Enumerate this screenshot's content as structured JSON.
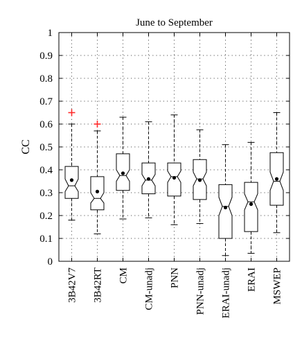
{
  "chart_data": {
    "type": "box",
    "title": "June to September",
    "xlabel": "",
    "ylabel": "CC",
    "ylim": [
      0,
      1
    ],
    "yticks": [
      0,
      0.1,
      0.2,
      0.3,
      0.4,
      0.5,
      0.6,
      0.7,
      0.8,
      0.9,
      1
    ],
    "ytick_labels": [
      "0",
      "0.1",
      "0.2",
      "0.3",
      "0.4",
      "0.5",
      "0.6",
      "0.7",
      "0.8",
      "0.9",
      "1"
    ],
    "grid": true,
    "notched": true,
    "categories": [
      "3B42V7",
      "3B42RT",
      "CM",
      "CM-unadj",
      "PNN",
      "PNN-unadj",
      "ERAI-unadj",
      "ERAI",
      "MSWEP"
    ],
    "boxes": [
      {
        "whisker_low": 0.18,
        "q1": 0.275,
        "median": 0.33,
        "q3": 0.415,
        "whisker_high": 0.6,
        "notch_low": 0.305,
        "notch_high": 0.36,
        "mean": 0.355,
        "outliers": [
          0.65
        ]
      },
      {
        "whisker_low": 0.12,
        "q1": 0.225,
        "median": 0.275,
        "q3": 0.37,
        "whisker_high": 0.57,
        "notch_low": 0.255,
        "notch_high": 0.3,
        "mean": 0.305,
        "outliers": [
          0.6
        ]
      },
      {
        "whisker_low": 0.185,
        "q1": 0.31,
        "median": 0.375,
        "q3": 0.47,
        "whisker_high": 0.63,
        "notch_low": 0.35,
        "notch_high": 0.4,
        "mean": 0.385,
        "outliers": []
      },
      {
        "whisker_low": 0.19,
        "q1": 0.295,
        "median": 0.355,
        "q3": 0.43,
        "whisker_high": 0.61,
        "notch_low": 0.33,
        "notch_high": 0.38,
        "mean": 0.36,
        "outliers": []
      },
      {
        "whisker_low": 0.16,
        "q1": 0.285,
        "median": 0.37,
        "q3": 0.43,
        "whisker_high": 0.64,
        "notch_low": 0.345,
        "notch_high": 0.395,
        "mean": 0.365,
        "outliers": []
      },
      {
        "whisker_low": 0.165,
        "q1": 0.27,
        "median": 0.36,
        "q3": 0.445,
        "whisker_high": 0.575,
        "notch_low": 0.33,
        "notch_high": 0.39,
        "mean": 0.355,
        "outliers": []
      },
      {
        "whisker_low": 0.025,
        "q1": 0.1,
        "median": 0.24,
        "q3": 0.335,
        "whisker_high": 0.51,
        "notch_low": 0.2,
        "notch_high": 0.28,
        "mean": 0.235,
        "outliers": []
      },
      {
        "whisker_low": 0.035,
        "q1": 0.13,
        "median": 0.26,
        "q3": 0.345,
        "whisker_high": 0.52,
        "notch_low": 0.225,
        "notch_high": 0.295,
        "mean": 0.25,
        "outliers": []
      },
      {
        "whisker_low": 0.125,
        "q1": 0.245,
        "median": 0.35,
        "q3": 0.475,
        "whisker_high": 0.65,
        "notch_low": 0.31,
        "notch_high": 0.39,
        "mean": 0.36,
        "outliers": []
      }
    ],
    "colors": {
      "box": "#000000",
      "outlier": "#ff2a2a",
      "grid": "#555555"
    }
  }
}
